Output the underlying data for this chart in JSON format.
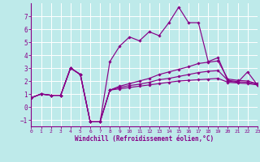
{
  "xlabel": "Windchill (Refroidissement éolien,°C)",
  "xlim": [
    0,
    23
  ],
  "ylim": [
    -1.5,
    8.0
  ],
  "yticks": [
    -1,
    0,
    1,
    2,
    3,
    4,
    5,
    6,
    7
  ],
  "xticks": [
    0,
    1,
    2,
    3,
    4,
    5,
    6,
    7,
    8,
    9,
    10,
    11,
    12,
    13,
    14,
    15,
    16,
    17,
    18,
    19,
    20,
    21,
    22,
    23
  ],
  "bg": "#beeaea",
  "grid_color": "#d4f4f4",
  "lc": "#880088",
  "series_upper": [
    0.7,
    1.0,
    0.9,
    0.9,
    3.0,
    2.5,
    -1.15,
    -1.15,
    3.5,
    4.7,
    5.4,
    5.1,
    5.8,
    5.5,
    6.5,
    7.7,
    6.5,
    6.5,
    3.5,
    3.8,
    2.0,
    1.9,
    2.7,
    1.7
  ],
  "series_mid1": [
    0.7,
    1.0,
    0.9,
    0.9,
    3.0,
    2.5,
    -1.15,
    -1.15,
    1.3,
    1.6,
    1.8,
    2.0,
    2.2,
    2.5,
    2.7,
    2.9,
    3.1,
    3.35,
    3.45,
    3.55,
    2.15,
    2.05,
    2.0,
    1.8
  ],
  "series_mid2": [
    0.7,
    1.0,
    0.9,
    0.9,
    3.0,
    2.5,
    -1.15,
    -1.15,
    1.3,
    1.5,
    1.65,
    1.75,
    1.9,
    2.1,
    2.2,
    2.35,
    2.5,
    2.65,
    2.75,
    2.8,
    2.05,
    1.95,
    1.9,
    1.75
  ],
  "series_low": [
    0.7,
    1.0,
    0.9,
    0.9,
    3.0,
    2.5,
    -1.15,
    -1.15,
    1.3,
    1.4,
    1.5,
    1.6,
    1.7,
    1.8,
    1.9,
    2.0,
    2.05,
    2.1,
    2.15,
    2.2,
    1.9,
    1.85,
    1.8,
    1.7
  ]
}
